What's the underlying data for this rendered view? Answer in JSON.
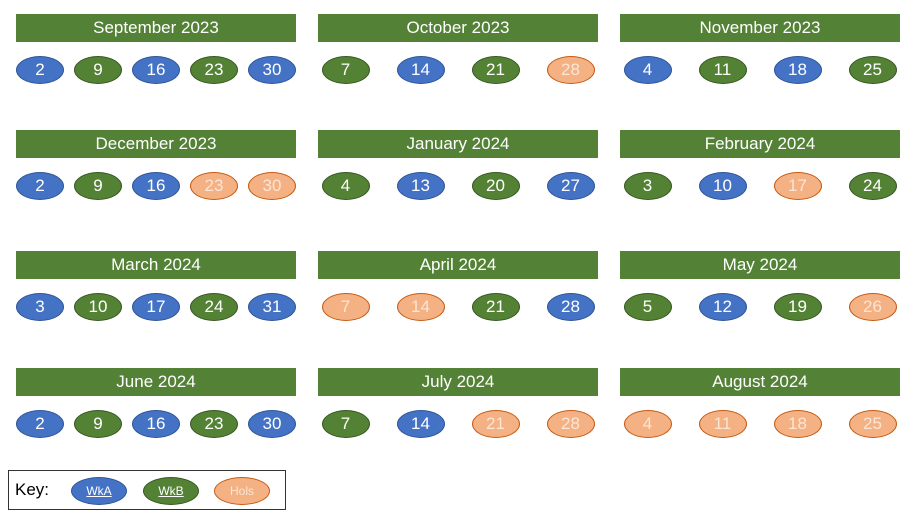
{
  "colors": {
    "header": "#538135",
    "wkA": "#4472C4",
    "wkB": "#548235",
    "hols": "#F4B183"
  },
  "months": [
    {
      "title": "September 2023",
      "days": [
        {
          "n": "2",
          "t": "A"
        },
        {
          "n": "9",
          "t": "B"
        },
        {
          "n": "16",
          "t": "A"
        },
        {
          "n": "23",
          "t": "B"
        },
        {
          "n": "30",
          "t": "A"
        }
      ]
    },
    {
      "title": "October 2023",
      "days": [
        {
          "n": "7",
          "t": "B"
        },
        {
          "n": "14",
          "t": "A"
        },
        {
          "n": "21",
          "t": "B"
        },
        {
          "n": "28",
          "t": "H"
        }
      ]
    },
    {
      "title": "November 2023",
      "days": [
        {
          "n": "4",
          "t": "A"
        },
        {
          "n": "11",
          "t": "B"
        },
        {
          "n": "18",
          "t": "A"
        },
        {
          "n": "25",
          "t": "B"
        }
      ]
    },
    {
      "title": "December 2023",
      "days": [
        {
          "n": "2",
          "t": "A"
        },
        {
          "n": "9",
          "t": "B"
        },
        {
          "n": "16",
          "t": "A"
        },
        {
          "n": "23",
          "t": "H"
        },
        {
          "n": "30",
          "t": "H"
        }
      ]
    },
    {
      "title": "January 2024",
      "days": [
        {
          "n": "4",
          "t": "B"
        },
        {
          "n": "13",
          "t": "A"
        },
        {
          "n": "20",
          "t": "B"
        },
        {
          "n": "27",
          "t": "A"
        }
      ]
    },
    {
      "title": "February 2024",
      "days": [
        {
          "n": "3",
          "t": "B"
        },
        {
          "n": "10",
          "t": "A"
        },
        {
          "n": "17",
          "t": "H"
        },
        {
          "n": "24",
          "t": "B"
        }
      ]
    },
    {
      "title": "March 2024",
      "days": [
        {
          "n": "3",
          "t": "A"
        },
        {
          "n": "10",
          "t": "B"
        },
        {
          "n": "17",
          "t": "A"
        },
        {
          "n": "24",
          "t": "B"
        },
        {
          "n": "31",
          "t": "A"
        }
      ]
    },
    {
      "title": "April 2024",
      "days": [
        {
          "n": "7",
          "t": "H"
        },
        {
          "n": "14",
          "t": "H"
        },
        {
          "n": "21",
          "t": "B"
        },
        {
          "n": "28",
          "t": "A"
        }
      ]
    },
    {
      "title": "May 2024",
      "days": [
        {
          "n": "5",
          "t": "B"
        },
        {
          "n": "12",
          "t": "A"
        },
        {
          "n": "19",
          "t": "B"
        },
        {
          "n": "26",
          "t": "H"
        }
      ]
    },
    {
      "title": "June 2024",
      "days": [
        {
          "n": "2",
          "t": "A"
        },
        {
          "n": "9",
          "t": "B"
        },
        {
          "n": "16",
          "t": "A"
        },
        {
          "n": "23",
          "t": "B"
        },
        {
          "n": "30",
          "t": "A"
        }
      ]
    },
    {
      "title": "July 2024",
      "days": [
        {
          "n": "7",
          "t": "B"
        },
        {
          "n": "14",
          "t": "A"
        },
        {
          "n": "21",
          "t": "H"
        },
        {
          "n": "28",
          "t": "H"
        }
      ]
    },
    {
      "title": "August 2024",
      "days": [
        {
          "n": "4",
          "t": "H"
        },
        {
          "n": "11",
          "t": "H"
        },
        {
          "n": "18",
          "t": "H"
        },
        {
          "n": "25",
          "t": "H"
        }
      ]
    }
  ],
  "key": {
    "label": "Key:",
    "items": [
      {
        "label": "WkA",
        "t": "A"
      },
      {
        "label": "WkB",
        "t": "B"
      },
      {
        "label": "Hols",
        "t": "H"
      }
    ]
  }
}
